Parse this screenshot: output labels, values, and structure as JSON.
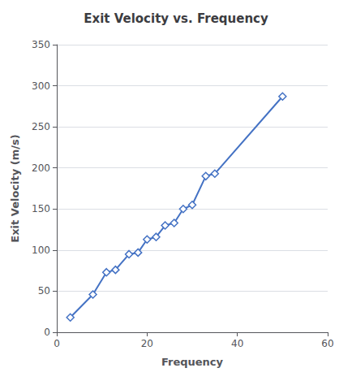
{
  "chart_data": {
    "type": "line",
    "title": "Exit Velocity vs. Frequency",
    "xlabel": "Frequency",
    "ylabel": "Exit Velocity (m/s)",
    "x": [
      3,
      8,
      11,
      13,
      16,
      18,
      20,
      22,
      24,
      26,
      28,
      30,
      33,
      35,
      50
    ],
    "values": [
      18,
      46,
      73,
      76,
      95,
      97,
      113,
      116,
      130,
      133,
      150,
      155,
      190,
      193,
      287
    ],
    "color": "#4472C4",
    "marker": "diamond",
    "xlim": [
      0,
      60
    ],
    "xticks": [
      0,
      20,
      40,
      60
    ],
    "ylim": [
      0,
      350
    ],
    "yticks": [
      0,
      50,
      100,
      150,
      200,
      250,
      300,
      350
    ],
    "grid": "y"
  }
}
